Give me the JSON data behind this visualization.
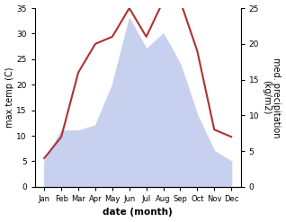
{
  "months": [
    "Jan",
    "Feb",
    "Mar",
    "Apr",
    "May",
    "Jun",
    "Jul",
    "Aug",
    "Sep",
    "Oct",
    "Nov",
    "Dec"
  ],
  "max_temp": [
    5,
    11,
    11,
    12,
    20,
    33,
    27,
    30,
    24,
    14,
    7,
    5
  ],
  "precipitation": [
    4,
    7,
    16,
    20,
    21,
    25,
    21,
    26,
    26,
    19,
    8,
    7
  ],
  "temp_fill_color": "#c8d0f0",
  "precip_color": "#b03030",
  "left_ylabel": "max temp (C)",
  "right_ylabel": "med. precipitation\n(kg/m2)",
  "xlabel": "date (month)",
  "ylim_left": [
    0,
    35
  ],
  "ylim_right": [
    0,
    25
  ],
  "yticks_left": [
    0,
    5,
    10,
    15,
    20,
    25,
    30,
    35
  ],
  "yticks_right": [
    0,
    5,
    10,
    15,
    20,
    25
  ],
  "background_color": "#ffffff",
  "figsize": [
    3.18,
    2.47
  ],
  "dpi": 100
}
